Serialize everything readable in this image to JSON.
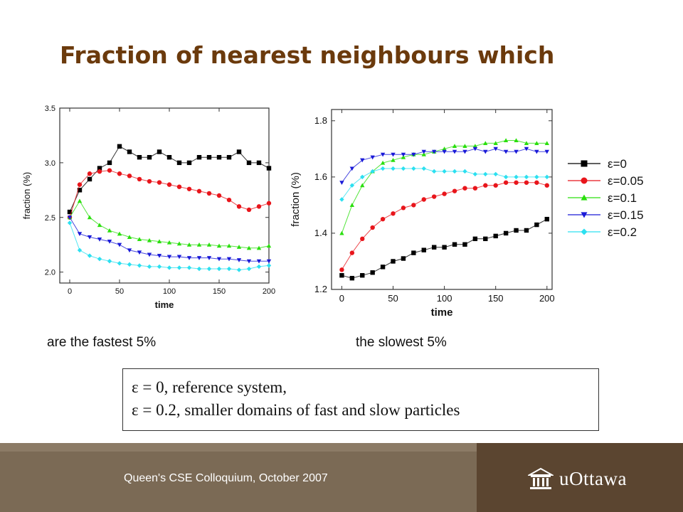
{
  "slide": {
    "title": "Fraction of nearest neighbours which",
    "caption_left": "are the fastest 5%",
    "caption_right": "the slowest 5%",
    "note_line1": "ε = 0, reference system,",
    "note_line2": "ε = 0.2, smaller domains of fast and slow particles",
    "footer_text": "Queen's CSE Colloquium, October 2007",
    "logo_text": "uOttawa"
  },
  "colors": {
    "title": "#6b3a0c",
    "footer": "#7b6a55",
    "footer_dark": "#5b4530"
  },
  "chart_data": [
    {
      "type": "scatter",
      "xlabel": "time",
      "ylabel": "fraction (%)",
      "xlim": [
        -10,
        200
      ],
      "ylim": [
        1.9,
        3.5
      ],
      "xticks": [
        0,
        50,
        100,
        150,
        200
      ],
      "yticks": [
        2.0,
        2.5,
        3.0,
        3.5
      ],
      "ytick_labels": [
        "2.0",
        "2.5",
        "3.0",
        "3.5"
      ],
      "x": [
        0,
        10,
        20,
        30,
        40,
        50,
        60,
        70,
        80,
        90,
        100,
        110,
        120,
        130,
        140,
        150,
        160,
        170,
        180,
        190,
        200
      ],
      "series": [
        {
          "name": "ε=0",
          "color": "#000000",
          "marker": "square",
          "values": [
            2.55,
            2.75,
            2.85,
            2.95,
            3.0,
            3.15,
            3.1,
            3.05,
            3.05,
            3.1,
            3.05,
            3.0,
            3.0,
            3.05,
            3.05,
            3.05,
            3.05,
            3.1,
            3.0,
            3.0,
            2.95
          ]
        },
        {
          "name": "ε=0.05",
          "color": "#e8151b",
          "marker": "circle",
          "values": [
            2.5,
            2.8,
            2.9,
            2.92,
            2.93,
            2.9,
            2.88,
            2.85,
            2.83,
            2.82,
            2.8,
            2.78,
            2.76,
            2.74,
            2.72,
            2.7,
            2.66,
            2.6,
            2.57,
            2.6,
            2.63
          ]
        },
        {
          "name": "ε=0.1",
          "color": "#2adf0d",
          "marker": "triangle-up",
          "values": [
            2.5,
            2.65,
            2.5,
            2.43,
            2.38,
            2.35,
            2.32,
            2.3,
            2.29,
            2.28,
            2.27,
            2.26,
            2.25,
            2.25,
            2.25,
            2.24,
            2.24,
            2.23,
            2.22,
            2.22,
            2.24
          ]
        },
        {
          "name": "ε=0.15",
          "color": "#1a1ad8",
          "marker": "triangle-down",
          "values": [
            2.5,
            2.35,
            2.32,
            2.3,
            2.28,
            2.25,
            2.2,
            2.18,
            2.16,
            2.15,
            2.14,
            2.14,
            2.13,
            2.13,
            2.13,
            2.12,
            2.12,
            2.11,
            2.1,
            2.1,
            2.1
          ]
        },
        {
          "name": "ε=0.2",
          "color": "#2ce0f0",
          "marker": "diamond",
          "values": [
            2.45,
            2.2,
            2.15,
            2.12,
            2.1,
            2.08,
            2.07,
            2.06,
            2.05,
            2.05,
            2.04,
            2.04,
            2.04,
            2.03,
            2.03,
            2.03,
            2.03,
            2.02,
            2.03,
            2.05,
            2.06
          ]
        }
      ]
    },
    {
      "type": "scatter",
      "xlabel": "time",
      "ylabel": "fraction (%)",
      "xlim": [
        -10,
        205
      ],
      "ylim": [
        1.2,
        1.84
      ],
      "xticks": [
        0,
        50,
        100,
        150,
        200
      ],
      "yticks": [
        1.2,
        1.4,
        1.6,
        1.8
      ],
      "ytick_labels": [
        "1.2",
        "1.4",
        "1.6",
        "1.8"
      ],
      "x": [
        0,
        10,
        20,
        30,
        40,
        50,
        60,
        70,
        80,
        90,
        100,
        110,
        120,
        130,
        140,
        150,
        160,
        170,
        180,
        190,
        200
      ],
      "series": [
        {
          "name": "ε=0",
          "color": "#000000",
          "marker": "square",
          "values": [
            1.25,
            1.24,
            1.25,
            1.26,
            1.28,
            1.3,
            1.31,
            1.33,
            1.34,
            1.35,
            1.35,
            1.36,
            1.36,
            1.38,
            1.38,
            1.39,
            1.4,
            1.41,
            1.41,
            1.43,
            1.45
          ]
        },
        {
          "name": "ε=0.05",
          "color": "#e8151b",
          "marker": "circle",
          "values": [
            1.27,
            1.33,
            1.38,
            1.42,
            1.45,
            1.47,
            1.49,
            1.5,
            1.52,
            1.53,
            1.54,
            1.55,
            1.56,
            1.56,
            1.57,
            1.57,
            1.58,
            1.58,
            1.58,
            1.58,
            1.57
          ]
        },
        {
          "name": "ε=0.1",
          "color": "#2adf0d",
          "marker": "triangle-up",
          "values": [
            1.4,
            1.5,
            1.57,
            1.62,
            1.65,
            1.66,
            1.67,
            1.68,
            1.68,
            1.69,
            1.7,
            1.71,
            1.71,
            1.71,
            1.72,
            1.72,
            1.73,
            1.73,
            1.72,
            1.72,
            1.72
          ]
        },
        {
          "name": "ε=0.15",
          "color": "#1a1ad8",
          "marker": "triangle-down",
          "values": [
            1.58,
            1.63,
            1.66,
            1.67,
            1.68,
            1.68,
            1.68,
            1.68,
            1.69,
            1.69,
            1.69,
            1.69,
            1.69,
            1.7,
            1.69,
            1.7,
            1.69,
            1.69,
            1.7,
            1.69,
            1.69
          ]
        },
        {
          "name": "ε=0.2",
          "color": "#2ce0f0",
          "marker": "diamond",
          "values": [
            1.52,
            1.57,
            1.6,
            1.62,
            1.63,
            1.63,
            1.63,
            1.63,
            1.63,
            1.62,
            1.62,
            1.62,
            1.62,
            1.61,
            1.61,
            1.61,
            1.6,
            1.6,
            1.6,
            1.6,
            1.6
          ]
        }
      ],
      "legend": "right"
    }
  ]
}
